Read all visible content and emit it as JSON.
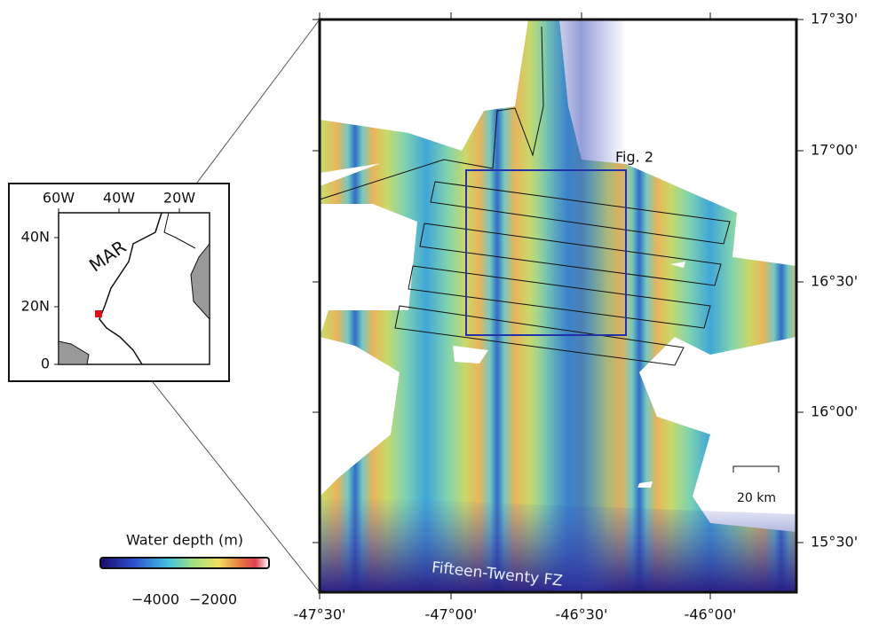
{
  "inset": {
    "x_labels": [
      "60W",
      "40W",
      "20W"
    ],
    "y_labels": [
      "40N",
      "20N",
      "0"
    ],
    "ridge_label": "MAR"
  },
  "map": {
    "lat_labels": [
      "17°30'",
      "17°00'",
      "16°30'",
      "16°00'",
      "15°30'"
    ],
    "lon_labels": [
      "-47°30'",
      "-47°00'",
      "-46°30'",
      "-46°00'"
    ],
    "box_label": "Fig. 2",
    "scale_label": "20 km",
    "fz_label": "Fifteen-Twenty FZ"
  },
  "colorbar": {
    "title": "Water depth (m)",
    "tick_labels": [
      "−4000",
      "−2000"
    ]
  }
}
